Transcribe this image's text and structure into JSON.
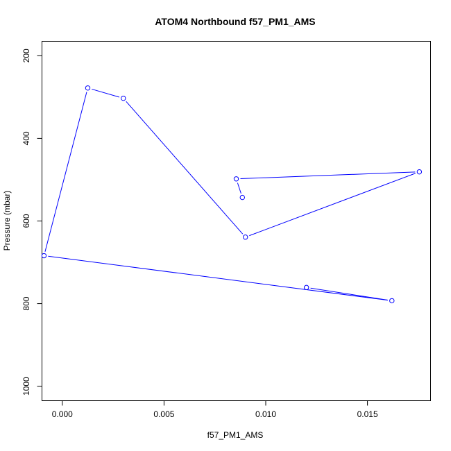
{
  "chart_data": {
    "type": "line",
    "title": "ATOM4 Northbound f57_PM1_AMS",
    "xlabel": "f57_PM1_AMS",
    "ylabel": "Pressure (mbar)",
    "xlim": [
      -0.001,
      0.0181
    ],
    "ylim": [
      1035,
      165
    ],
    "y_reversed": true,
    "xticks": [
      0.0,
      0.005,
      0.01,
      0.015
    ],
    "xtick_labels": [
      "0.000",
      "0.005",
      "0.010",
      "0.015"
    ],
    "yticks": [
      200,
      400,
      600,
      800,
      1000
    ],
    "ytick_labels": [
      "200",
      "400",
      "600",
      "800",
      "1000"
    ],
    "grid": false,
    "series": [
      {
        "color": "#0000ff",
        "marker": "open-circle",
        "points": [
          {
            "x": 0.00885,
            "y": 543
          },
          {
            "x": 0.00855,
            "y": 498
          },
          {
            "x": 0.01755,
            "y": 481
          },
          {
            "x": 0.009,
            "y": 639
          },
          {
            "x": 0.003,
            "y": 303
          },
          {
            "x": 0.00125,
            "y": 278
          },
          {
            "x": -0.0009,
            "y": 684
          },
          {
            "x": 0.0162,
            "y": 793
          },
          {
            "x": 0.012,
            "y": 761
          }
        ]
      }
    ]
  }
}
